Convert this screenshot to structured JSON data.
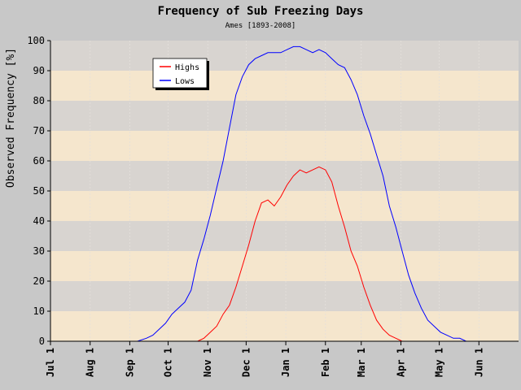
{
  "chart_data": {
    "type": "line",
    "title": "Frequency of Sub Freezing Days",
    "subtitle": "Ames [1893-2008]",
    "xlabel": "",
    "ylabel": "Observed Frequency [%]",
    "ylim": [
      0,
      100
    ],
    "yticks": [
      0,
      10,
      20,
      30,
      40,
      50,
      60,
      70,
      80,
      90,
      100
    ],
    "xticks": [
      "Jul 1",
      "Aug 1",
      "Sep 1",
      "Oct 1",
      "Nov 1",
      "Dec 1",
      "Jan 1",
      "Feb 1",
      "Mar 1",
      "Apr 1",
      "May 1",
      "Jun 1"
    ],
    "xtick_days": [
      0,
      31,
      62,
      92,
      123,
      153,
      184,
      215,
      243,
      274,
      304,
      335
    ],
    "xlim_days": [
      0,
      366
    ],
    "grid": "horizontal bands",
    "band_colors": [
      "#f5e6cd",
      "#d8d4d0"
    ],
    "legend_position": "upper-left",
    "series": [
      {
        "name": "Highs",
        "color": "#ff0000",
        "x": [
          115,
          120,
          125,
          130,
          135,
          140,
          145,
          150,
          155,
          160,
          165,
          170,
          175,
          180,
          185,
          190,
          195,
          200,
          205,
          210,
          215,
          220,
          225,
          230,
          235,
          240,
          245,
          250,
          255,
          260,
          265,
          270,
          275
        ],
        "values": [
          0,
          1,
          3,
          5,
          9,
          12,
          18,
          25,
          32,
          40,
          46,
          47,
          45,
          48,
          52,
          55,
          57,
          56,
          57,
          58,
          57,
          53,
          45,
          38,
          30,
          25,
          18,
          12,
          7,
          4,
          2,
          1,
          0
        ]
      },
      {
        "name": "Lows",
        "color": "#0000ff",
        "x": [
          68,
          75,
          80,
          85,
          90,
          95,
          100,
          105,
          110,
          115,
          120,
          125,
          130,
          135,
          140,
          145,
          150,
          155,
          160,
          165,
          170,
          175,
          180,
          185,
          190,
          195,
          200,
          205,
          210,
          215,
          220,
          225,
          230,
          235,
          240,
          245,
          250,
          255,
          260,
          265,
          270,
          275,
          280,
          285,
          290,
          295,
          300,
          305,
          310,
          315,
          320,
          325,
          330
        ],
        "values": [
          0,
          1,
          2,
          4,
          6,
          9,
          11,
          13,
          17,
          27,
          34,
          42,
          51,
          60,
          71,
          82,
          88,
          92,
          94,
          95,
          96,
          96,
          96,
          97,
          98,
          98,
          97,
          96,
          97,
          96,
          94,
          92,
          91,
          87,
          82,
          75,
          69,
          62,
          55,
          45,
          38,
          30,
          22,
          16,
          11,
          7,
          5,
          3,
          2,
          1,
          1,
          0,
          0
        ]
      }
    ]
  }
}
